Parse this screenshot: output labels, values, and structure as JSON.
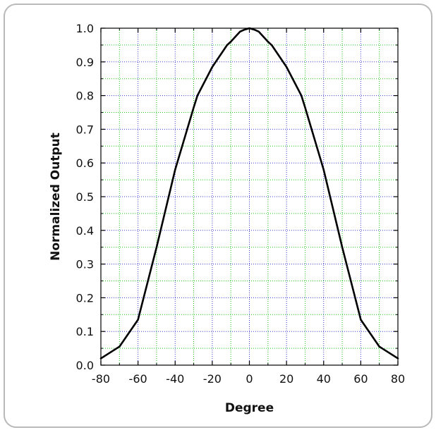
{
  "chart_data": {
    "type": "line",
    "title": "",
    "xlabel": "Degree",
    "ylabel": "Normalized Output",
    "xlim": [
      -80,
      80
    ],
    "ylim": [
      0,
      1.0
    ],
    "x_ticks": [
      -80,
      -60,
      -40,
      -20,
      0,
      20,
      40,
      60,
      80
    ],
    "y_ticks": [
      0.0,
      0.1,
      0.2,
      0.3,
      0.4,
      0.5,
      0.6,
      0.7,
      0.8,
      0.9,
      1.0
    ],
    "x_tick_labels": [
      "-80",
      "-60",
      "-40",
      "-20",
      "0",
      "20",
      "40",
      "60",
      "80"
    ],
    "y_tick_labels": [
      "0.0",
      "0.1",
      "0.2",
      "0.3",
      "0.4",
      "0.5",
      "0.6",
      "0.7",
      "0.8",
      "0.9",
      "1.0"
    ],
    "grid": true,
    "minor_grid": true,
    "legend": "none",
    "series": [
      {
        "x": [
          -80,
          -70,
          -60,
          -50,
          -40,
          -30,
          -28,
          -20,
          -12,
          -10,
          -5,
          -3,
          0,
          3,
          5,
          10,
          12,
          20,
          28,
          30,
          40,
          50,
          60,
          70,
          80
        ],
        "y": [
          0.02,
          0.055,
          0.135,
          0.35,
          0.58,
          0.765,
          0.8,
          0.885,
          0.95,
          0.96,
          0.99,
          0.995,
          1.0,
          0.995,
          0.99,
          0.96,
          0.95,
          0.885,
          0.8,
          0.765,
          0.58,
          0.35,
          0.135,
          0.055,
          0.02
        ]
      }
    ],
    "colors": {
      "line": "#000000",
      "major_grid": "#3a3ad6",
      "minor_grid": "#22c522",
      "axis": "#000000",
      "card_border": "#b9b9b9"
    }
  }
}
